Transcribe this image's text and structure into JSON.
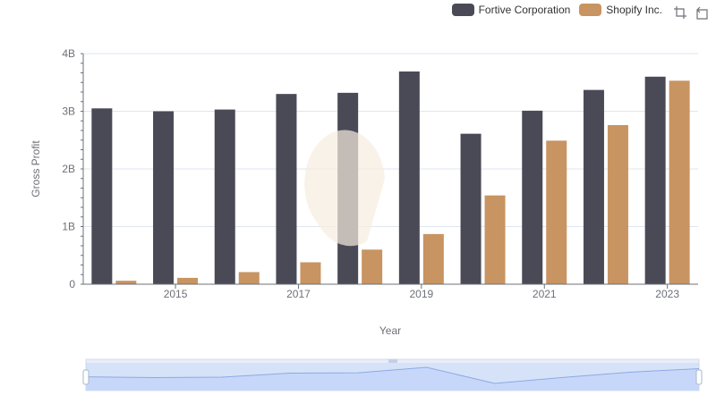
{
  "legend": [
    {
      "name": "Fortive Corporation",
      "color": "#4a4a57"
    },
    {
      "name": "Shopify Inc.",
      "color": "#c89462"
    }
  ],
  "toolbox": {
    "zoom_icon": "zoom-icon",
    "restore_icon": "restore-icon"
  },
  "chart_data": {
    "type": "bar",
    "categories": [
      "2014",
      "2015",
      "2016",
      "2017",
      "2018",
      "2019",
      "2020",
      "2021",
      "2022",
      "2023"
    ],
    "x_tick_labels": [
      "2015",
      "2017",
      "2019",
      "2021",
      "2023"
    ],
    "series": [
      {
        "name": "Fortive Corporation",
        "color": "#4a4a57",
        "values": [
          3.05,
          3.0,
          3.03,
          3.3,
          3.32,
          3.69,
          2.61,
          3.01,
          3.37,
          3.6
        ]
      },
      {
        "name": "Shopify Inc.",
        "color": "#c89462",
        "values": [
          0.06,
          0.11,
          0.21,
          0.38,
          0.6,
          0.87,
          1.54,
          2.49,
          2.76,
          3.53
        ]
      }
    ],
    "y_ticks": [
      "0",
      "1B",
      "2B",
      "3B",
      "4B"
    ],
    "ylim": [
      0,
      4
    ],
    "xlabel": "Year",
    "ylabel": "Gross Profit",
    "grid": true,
    "legend_position": "top-right"
  }
}
